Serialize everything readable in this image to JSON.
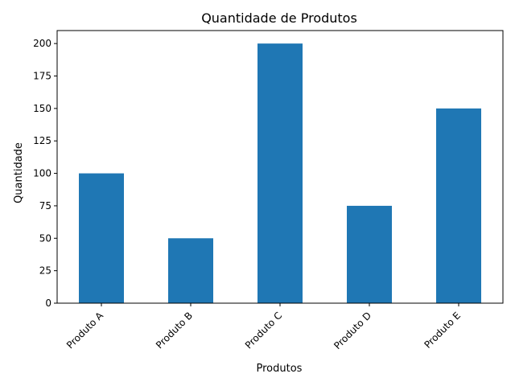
{
  "chart_data": {
    "type": "bar",
    "title": "Quantidade de Produtos",
    "xlabel": "Produtos",
    "ylabel": "Quantidade",
    "categories": [
      "Produto A",
      "Produto B",
      "Produto C",
      "Produto D",
      "Produto E"
    ],
    "values": [
      100,
      50,
      200,
      75,
      150
    ],
    "ylim": [
      0,
      210
    ],
    "yticks": [
      0,
      25,
      50,
      75,
      100,
      125,
      150,
      175,
      200
    ],
    "grid": false,
    "legend": "none",
    "bar_color": "#1f77b4"
  }
}
